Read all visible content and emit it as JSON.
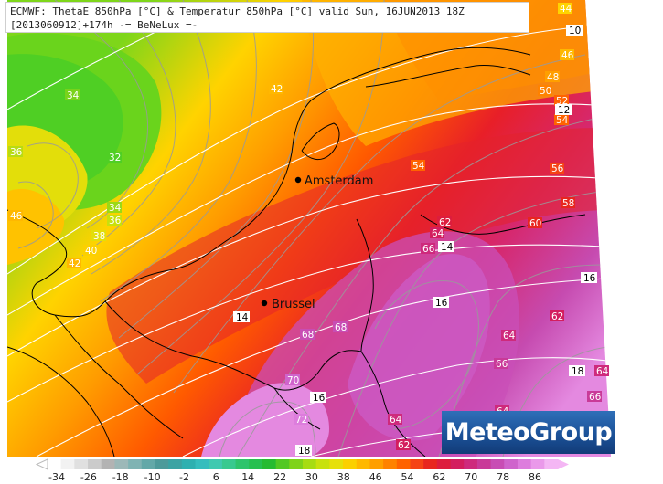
{
  "header": {
    "line1": "ECMWF: ThetaE 850hPa [°C] & Temperatur 850hPa [°C] valid Sun, 16JUN2013 18Z",
    "line2": "[2013060912]+174h -= BeNeLux =-"
  },
  "logo": {
    "text": "MeteoGroup"
  },
  "cities": [
    {
      "name": "Amsterdam"
    },
    {
      "name": "Brussel"
    }
  ],
  "theta_labels": [
    "34",
    "36",
    "32",
    "34",
    "36",
    "38",
    "40",
    "42",
    "46",
    "42",
    "54",
    "56",
    "58",
    "60",
    "62",
    "64",
    "66",
    "62",
    "64",
    "66",
    "68",
    "68",
    "70",
    "72",
    "64",
    "62",
    "64",
    "66",
    "64",
    "48",
    "50",
    "52",
    "54",
    "46",
    "44"
  ],
  "temp_labels": [
    "10",
    "12",
    "14",
    "14",
    "16",
    "16",
    "16",
    "18",
    "18"
  ],
  "legend": {
    "ticks": [
      "-34",
      "-26",
      "-18",
      "-10",
      "-2",
      "6",
      "14",
      "22",
      "30",
      "38",
      "46",
      "54",
      "62",
      "70",
      "78",
      "86"
    ],
    "colors": [
      "#ffffff",
      "#f2f2f2",
      "#e0e0e0",
      "#cbcbcb",
      "#b3b3b3",
      "#9cb8b8",
      "#7fb3b3",
      "#62a8a8",
      "#4d9a9a",
      "#3ba3a3",
      "#2eb0b0",
      "#36bdbd",
      "#40c9b0",
      "#38c98f",
      "#2ec46c",
      "#27c050",
      "#26bb31",
      "#52c823",
      "#7fd31a",
      "#a7dc12",
      "#c8e10d",
      "#e6e00a",
      "#fbd000",
      "#ffb800",
      "#ff9f00",
      "#ff8200",
      "#ff6300",
      "#f54316",
      "#e8261f",
      "#dd1d3d",
      "#d31e5e",
      "#ce2a7c",
      "#c93a98",
      "#c84db4",
      "#cf64cc",
      "#dd7ddd",
      "#ea99ea",
      "#f4b6f4"
    ]
  }
}
